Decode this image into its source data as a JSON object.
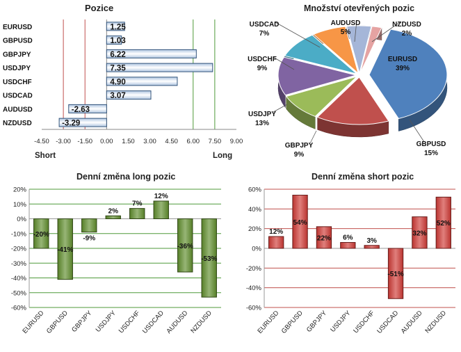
{
  "chart_data": [
    {
      "type": "bar",
      "orientation": "horizontal",
      "title": "Pozice",
      "categories": [
        "EURUSD",
        "GBPUSD",
        "GBPJPY",
        "USDJPY",
        "USDCHF",
        "USDCAD",
        "AUDUSD",
        "NZDUSD"
      ],
      "values": [
        1.25,
        1.03,
        6.22,
        7.35,
        4.9,
        3.07,
        -2.63,
        -3.29
      ],
      "value_labels": [
        "1.25",
        "1.03",
        "6.22",
        "7.35",
        "4.90",
        "3.07",
        "-2.63",
        "-3.29"
      ],
      "xlim": [
        -4.5,
        9.0
      ],
      "xticks": [
        "-4.50",
        "-3.00",
        "-1.50",
        "0.00",
        "1.50",
        "3.00",
        "4.50",
        "6.00",
        "7.50",
        "9.00"
      ],
      "xtick_values": [
        -4.5,
        -3,
        -1.5,
        0,
        1.5,
        3,
        4.5,
        6,
        7.5,
        9
      ],
      "short_label": "Short",
      "long_label": "Long",
      "reference_lines": [
        {
          "value": -3.0,
          "color": "#c0504d"
        },
        {
          "value": -1.5,
          "color": "#c0504d"
        },
        {
          "value": 6.0,
          "color": "#4f9a3a"
        },
        {
          "value": 7.5,
          "color": "#4f9a3a"
        }
      ],
      "bar_color": "#4f81bd",
      "grid": false
    },
    {
      "type": "pie",
      "title": "Množství otevřených pozic",
      "slices": [
        {
          "name": "EURUSD",
          "value": 39,
          "label": "39%",
          "color": "#4f81bd"
        },
        {
          "name": "GBPUSD",
          "value": 15,
          "label": "15%",
          "color": "#c0504d"
        },
        {
          "name": "GBPJPY",
          "value": 9,
          "label": "9%",
          "color": "#9bbb59"
        },
        {
          "name": "USDJPY",
          "value": 13,
          "label": "13%",
          "color": "#8064a2"
        },
        {
          "name": "USDCHF",
          "value": 9,
          "label": "9%",
          "color": "#4bacc6"
        },
        {
          "name": "USDCAD",
          "value": 7,
          "label": "7%",
          "color": "#f79646"
        },
        {
          "name": "AUDUSD",
          "value": 5,
          "label": "5%",
          "color": "#a5b6d8"
        },
        {
          "name": "NZDUSD",
          "value": 2,
          "label": "2%",
          "color": "#e5a3a2"
        }
      ]
    },
    {
      "type": "bar",
      "title": "Denní změna long pozic",
      "categories": [
        "EURUSD",
        "GBPUSD",
        "GBPJPY",
        "USDJPY",
        "USDCHF",
        "USDCAD",
        "AUDUSD",
        "NZDUSD"
      ],
      "values": [
        -20,
        -41,
        -9,
        2,
        7,
        12,
        -36,
        -53
      ],
      "value_labels": [
        "-20%",
        "-41%",
        "-9%",
        "2%",
        "7%",
        "12%",
        "-36%",
        "-53%"
      ],
      "ylim": [
        -60,
        20
      ],
      "yticks": [
        "20%",
        "10%",
        "0%",
        "-10%",
        "-20%",
        "-30%",
        "-40%",
        "-50%",
        "-60%"
      ],
      "ytick_values": [
        20,
        10,
        0,
        -10,
        -20,
        -30,
        -40,
        -50,
        -60
      ],
      "bar_color": "#5f8d2c",
      "grid": true
    },
    {
      "type": "bar",
      "title": "Denní změna short pozic",
      "categories": [
        "EURUSD",
        "GBPUSD",
        "GBPJPY",
        "USDJPY",
        "USDCHF",
        "USDCAD",
        "AUDUSD",
        "NZDUSD"
      ],
      "values": [
        12,
        54,
        22,
        6,
        3,
        -51,
        32,
        52
      ],
      "value_labels": [
        "12%",
        "54%",
        "22%",
        "6%",
        "3%",
        "-51%",
        "32%",
        "52%"
      ],
      "ylim": [
        -60,
        60
      ],
      "yticks": [
        "60%",
        "40%",
        "20%",
        "0%",
        "-20%",
        "-40%",
        "-60%"
      ],
      "ytick_values": [
        60,
        40,
        20,
        0,
        -20,
        -40,
        -60
      ],
      "bar_color": "#cf3a35",
      "grid": true
    }
  ]
}
